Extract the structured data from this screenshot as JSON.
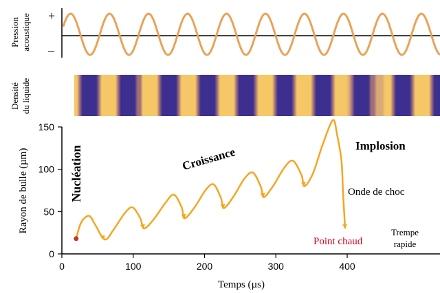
{
  "pressure_panel": {
    "ylabel_lines": [
      "Pression",
      "acoustique"
    ],
    "plus_label": "+",
    "minus_label": "–",
    "wave_color": "#E8A35A"
  },
  "density_panel": {
    "ylabel_lines": [
      "Densité",
      "du liquide"
    ],
    "dark_color": "#3C2F8F",
    "light_color": "#F5C766",
    "mid_color": "#D9A978"
  },
  "chart_data": {
    "type": "line",
    "xlabel": "Temps (µs)",
    "ylabel": "Rayon de bulle (µm)",
    "xlim": [
      0,
      400
    ],
    "ylim": [
      0,
      150
    ],
    "x_ticks": [
      0,
      100,
      200,
      300,
      400
    ],
    "y_ticks": [
      0,
      50,
      100,
      150
    ],
    "grid": false,
    "line_color": "#F5A623",
    "series": [
      {
        "points": [
          [
            20,
            18
          ],
          [
            27,
            37
          ],
          [
            38,
            45
          ],
          [
            47,
            34
          ],
          [
            60,
            17
          ],
          [
            72,
            28
          ],
          [
            88,
            48
          ],
          [
            99,
            55
          ],
          [
            110,
            42
          ],
          [
            115,
            30
          ],
          [
            128,
            40
          ],
          [
            145,
            60
          ],
          [
            157,
            70
          ],
          [
            168,
            55
          ],
          [
            172,
            42
          ],
          [
            186,
            55
          ],
          [
            202,
            76
          ],
          [
            213,
            82
          ],
          [
            223,
            66
          ],
          [
            227,
            54
          ],
          [
            240,
            67
          ],
          [
            256,
            89
          ],
          [
            268,
            96
          ],
          [
            279,
            79
          ],
          [
            283,
            67
          ],
          [
            296,
            80
          ],
          [
            312,
            102
          ],
          [
            324,
            110
          ],
          [
            336,
            93
          ],
          [
            340,
            80
          ],
          [
            352,
            95
          ],
          [
            366,
            130
          ],
          [
            380,
            158
          ],
          [
            386,
            140
          ],
          [
            392,
            110
          ],
          [
            394,
            75
          ],
          [
            396,
            45
          ],
          [
            397,
            30
          ]
        ]
      }
    ],
    "arrow_points": [
      [
        60,
        17
      ],
      [
        115,
        30
      ],
      [
        172,
        42
      ],
      [
        227,
        54
      ],
      [
        283,
        67
      ],
      [
        340,
        80
      ],
      [
        397,
        30
      ]
    ],
    "nucleation_point": {
      "x": 20,
      "y": 18,
      "color": "#C0392B"
    },
    "annotations": {
      "nucleation": "Nucléation",
      "croissance": "Croissance",
      "implosion": "Implosion",
      "onde": "Onde de choc",
      "point_chaud": "Point chaud",
      "trempe_line1": "Trempe",
      "trempe_line2": "rapide"
    },
    "point_chaud_color": "#D0021B"
  }
}
